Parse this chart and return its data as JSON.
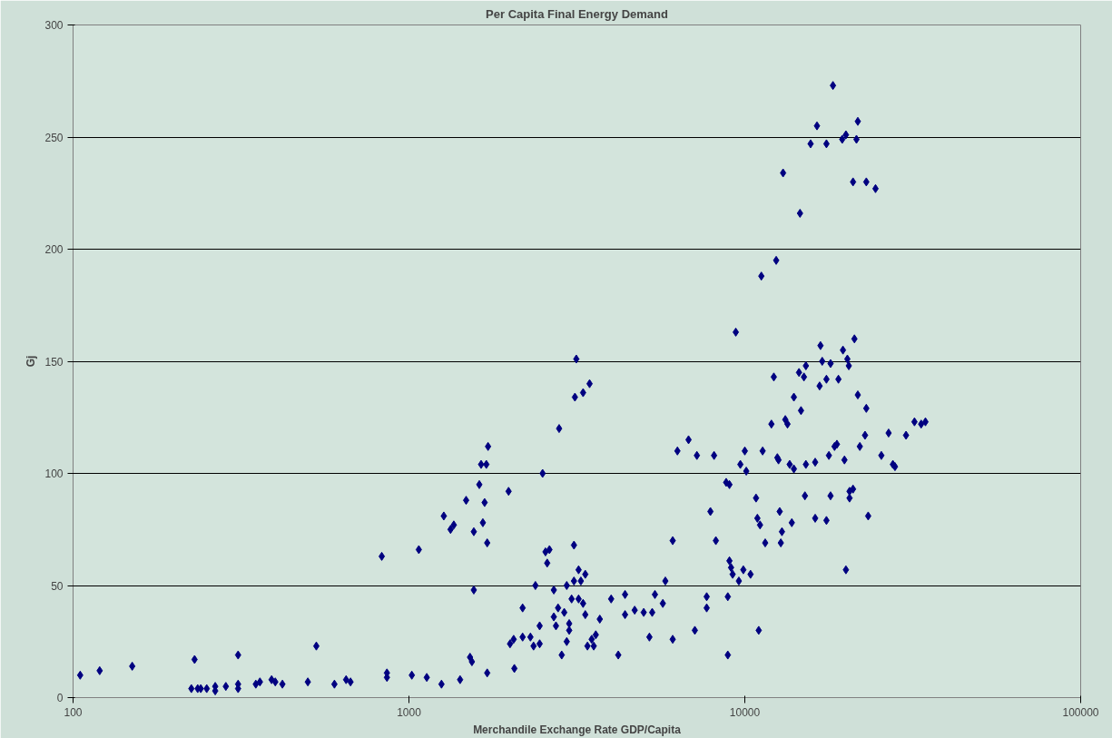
{
  "chart_data": {
    "type": "scatter",
    "title": "Per Capita Final Energy Demand",
    "xlabel": "Merchandile Exchange Rate GDP/Capita",
    "ylabel": "Gj",
    "log": "x",
    "xlim": [
      100,
      100000
    ],
    "xticks": [
      100,
      1000,
      10000,
      100000
    ],
    "ylim": [
      0,
      300
    ],
    "yticks": [
      0,
      50,
      100,
      150,
      200,
      250,
      300
    ],
    "grid": "y",
    "marker": "diamond",
    "series": [
      {
        "color": "#000080",
        "x": [
          105,
          120,
          150,
          225,
          230,
          235,
          240,
          250,
          265,
          265,
          285,
          310,
          310,
          310,
          350,
          360,
          390,
          400,
          420,
          500,
          530,
          600,
          650,
          670,
          830,
          860,
          860,
          1020,
          1070,
          1130,
          1250,
          1270,
          1330,
          1360,
          1420,
          1480,
          1520,
          1540,
          1560,
          1560,
          1620,
          1640,
          1660,
          1680,
          1700,
          1710,
          1720,
          1710,
          1980,
          2000,
          2050,
          2060,
          2180,
          2180,
          2300,
          2350,
          2380,
          2450,
          2450,
          2500,
          2550,
          2580,
          2620,
          2700,
          2700,
          2740,
          2780,
          2800,
          2850,
          2900,
          2950,
          2950,
          3000,
          3000,
          3050,
          3100,
          3100,
          3120,
          3150,
          3200,
          3200,
          3250,
          3300,
          3300,
          3350,
          3350,
          3400,
          3450,
          3500,
          3550,
          3600,
          3700,
          4000,
          4200,
          4400,
          4400,
          4700,
          5000,
          5200,
          5300,
          5400,
          5700,
          5800,
          6100,
          6100,
          6300,
          6800,
          7100,
          7200,
          7700,
          7700,
          7900,
          8100,
          8200,
          8800,
          8900,
          8900,
          9000,
          9000,
          9100,
          9200,
          9400,
          9600,
          9700,
          9900,
          10000,
          10100,
          10400,
          10800,
          10900,
          11000,
          11100,
          11300,
          11200,
          11500,
          12000,
          12200,
          12400,
          12500,
          12600,
          12700,
          12800,
          12900,
          13000,
          13200,
          13400,
          13600,
          13800,
          14000,
          14000,
          14500,
          14600,
          14700,
          15000,
          15200,
          15200,
          15100,
          15700,
          16200,
          16200,
          16400,
          16700,
          16800,
          17000,
          17500,
          17500,
          17500,
          17800,
          18000,
          18000,
          18300,
          18800,
          18500,
          19000,
          19500,
          19600,
          19800,
          20000,
          20000,
          20200,
          20400,
          20500,
          20500,
          21000,
          21200,
          21000,
          21500,
          21700,
          21700,
          22000,
          22800,
          23000,
          23000,
          23300,
          24500,
          25500,
          26800,
          27600,
          28000,
          30200,
          32000,
          33500,
          34500
        ],
        "values": [
          10,
          12,
          14,
          4,
          17,
          4,
          4,
          4,
          5,
          3,
          5,
          19,
          6,
          4,
          6,
          7,
          8,
          7,
          6,
          7,
          23,
          6,
          8,
          7,
          63,
          11,
          9,
          10,
          66,
          9,
          6,
          81,
          75,
          77,
          8,
          88,
          18,
          16,
          48,
          74,
          95,
          104,
          78,
          87,
          104,
          69,
          112,
          11,
          92,
          24,
          26,
          13,
          40,
          27,
          27,
          23,
          50,
          24,
          32,
          100,
          65,
          60,
          66,
          36,
          48,
          32,
          40,
          120,
          19,
          38,
          25,
          50,
          30,
          33,
          44,
          52,
          68,
          134,
          151,
          57,
          44,
          52,
          136,
          42,
          37,
          55,
          23,
          140,
          26,
          23,
          28,
          35,
          44,
          19,
          46,
          37,
          39,
          38,
          27,
          38,
          46,
          42,
          52,
          70,
          26,
          110,
          115,
          30,
          108,
          45,
          40,
          83,
          108,
          70,
          96,
          19,
          45,
          95,
          61,
          58,
          55,
          163,
          52,
          104,
          57,
          110,
          101,
          55,
          89,
          80,
          30,
          77,
          110,
          188,
          69,
          122,
          143,
          195,
          107,
          106,
          83,
          69,
          74,
          234,
          124,
          122,
          104,
          78,
          134,
          102,
          145,
          216,
          128,
          143,
          148,
          104,
          90,
          247,
          80,
          105,
          255,
          139,
          157,
          150,
          247,
          142,
          79,
          108,
          149,
          90,
          273,
          113,
          112,
          142,
          249,
          155,
          106,
          251,
          57,
          151,
          148,
          89,
          92,
          230,
          160,
          93,
          249,
          257,
          135,
          112,
          117,
          230,
          129,
          81,
          227,
          108,
          118,
          104,
          103,
          117,
          123,
          122,
          123
        ]
      }
    ]
  }
}
